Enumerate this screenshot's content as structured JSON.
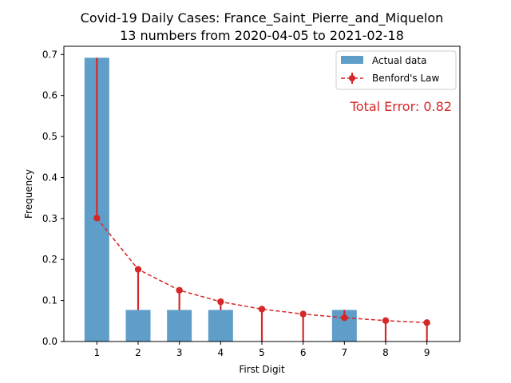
{
  "chart_data": {
    "type": "bar",
    "title": "Covid-19 Daily Cases: France_Saint_Pierre_and_Miquelon",
    "subtitle": "13 numbers from 2020-04-05 to 2021-02-18",
    "xlabel": "First Digit",
    "ylabel": "Frequency",
    "categories": [
      "1",
      "2",
      "3",
      "4",
      "5",
      "6",
      "7",
      "8",
      "9"
    ],
    "x": [
      1,
      2,
      3,
      4,
      5,
      6,
      7,
      8,
      9
    ],
    "ylim": [
      0,
      0.72
    ],
    "yticks": [
      "0.0",
      "0.1",
      "0.2",
      "0.3",
      "0.4",
      "0.5",
      "0.6",
      "0.7"
    ],
    "series": [
      {
        "name": "Actual data",
        "kind": "bar",
        "color": "#5f9ec9",
        "values": [
          0.692,
          0.077,
          0.077,
          0.077,
          0,
          0,
          0.077,
          0,
          0
        ]
      },
      {
        "name": "Benford's Law",
        "kind": "line-errorbar",
        "color": "#d62728",
        "values": [
          0.301,
          0.176,
          0.125,
          0.097,
          0.079,
          0.067,
          0.058,
          0.051,
          0.046
        ]
      }
    ],
    "annotation": "Total Error: 0.82",
    "annotation_color": "#d62728",
    "legend_position": "upper right",
    "grid": false
  }
}
